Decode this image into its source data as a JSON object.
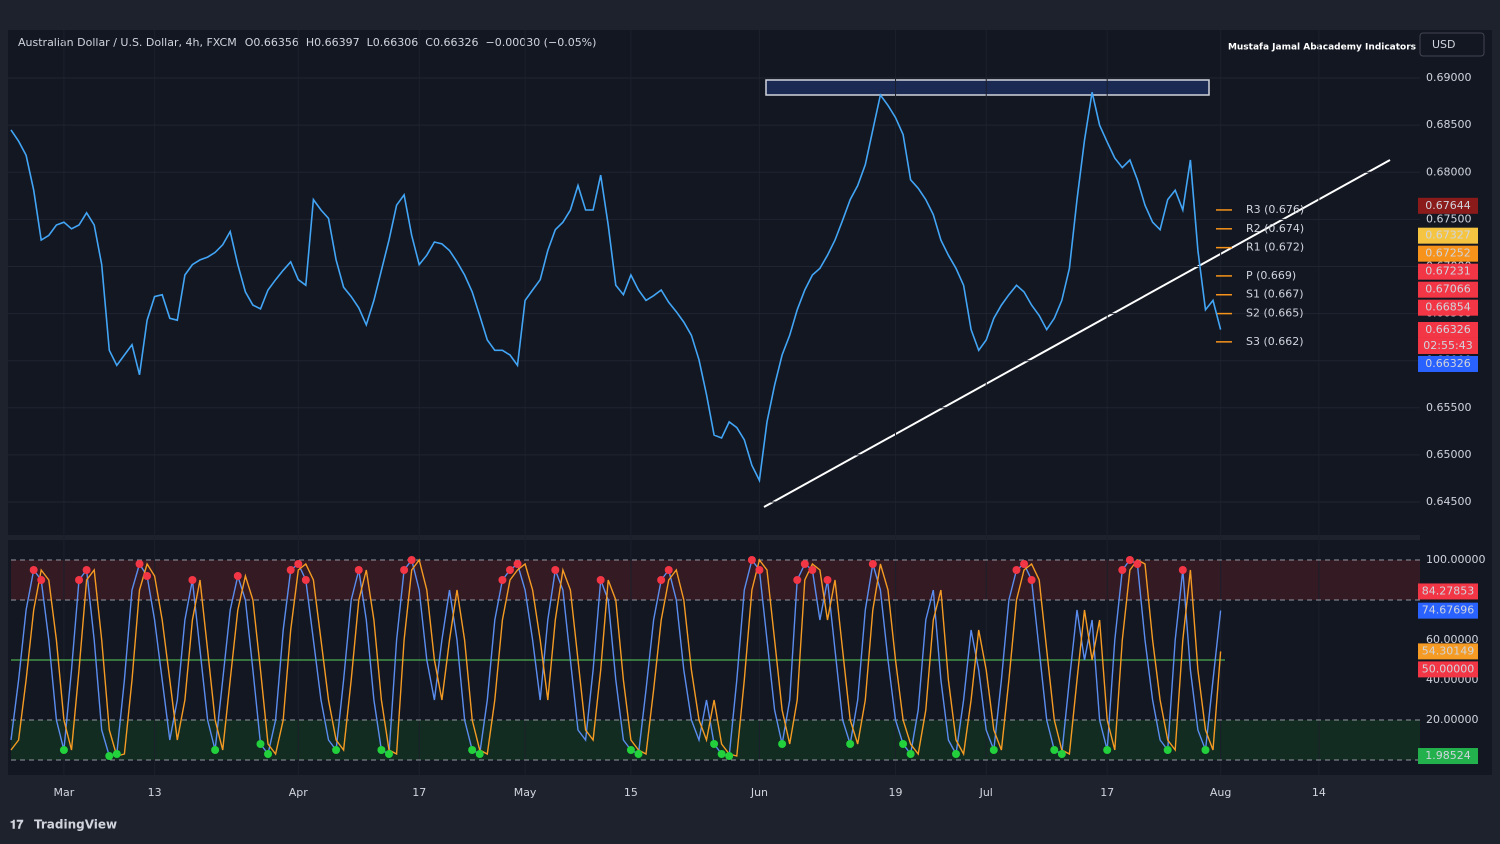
{
  "header": {
    "symbol": "Australian Dollar / U.S. Dollar, 4h, FXCM",
    "ohlc": [
      {
        "key": "O",
        "value": 0.66356
      },
      {
        "key": "H",
        "value": 0.66397
      },
      {
        "key": "L",
        "value": 0.66306
      },
      {
        "key": "C",
        "value": 0.66326
      }
    ],
    "change": "−0.00030 (−0.05%)",
    "indicator": "Mustafa Jamal Abacademy Indicators",
    "currency": "USD",
    "countdown": "02:55:43",
    "brand": "TradingView"
  },
  "chart_data": [
    {
      "type": "line",
      "color": "#42a5f5",
      "categories": [
        null,
        null,
        null,
        null,
        null,
        null,
        null,
        "Mar",
        null,
        null,
        null,
        null,
        null,
        null,
        null,
        null,
        null,
        null,
        null,
        "13",
        null,
        null,
        null,
        null,
        null,
        null,
        null,
        null,
        null,
        null,
        null,
        null,
        null,
        null,
        null,
        null,
        null,
        null,
        "Apr",
        null,
        null,
        null,
        null,
        null,
        null,
        null,
        null,
        null,
        null,
        null,
        null,
        null,
        null,
        null,
        "17",
        null,
        null,
        null,
        null,
        null,
        null,
        null,
        null,
        null,
        null,
        null,
        null,
        null,
        "May",
        null,
        null,
        null,
        null,
        null,
        null,
        null,
        null,
        null,
        null,
        null,
        null,
        null,
        "15",
        null,
        null,
        null,
        null,
        null,
        null,
        null,
        null,
        null,
        null,
        null,
        null,
        null,
        null,
        null,
        null,
        "Jun",
        null,
        null,
        null,
        null,
        null,
        null,
        null,
        null,
        null,
        null,
        null,
        null,
        null,
        null,
        null,
        null,
        null,
        "19",
        null,
        null,
        null,
        null,
        null,
        null,
        null,
        null,
        null,
        null,
        null,
        "Jul",
        null,
        null,
        null,
        null,
        null,
        null,
        null,
        null,
        null,
        null,
        null,
        null,
        null,
        null,
        null,
        "17",
        null,
        null,
        null,
        null,
        null,
        null,
        null,
        null,
        null,
        null,
        null,
        null,
        null,
        null,
        "Aug",
        null,
        null,
        null,
        null,
        null,
        null,
        null,
        null,
        null,
        null,
        null,
        null,
        "14",
        null,
        null,
        null,
        null,
        null,
        null,
        null,
        null,
        null,
        null,
        null,
        null
      ],
      "values": [
        0.6845,
        0.6833,
        0.6818,
        0.6781,
        0.6728,
        0.6733,
        0.6744,
        0.6747,
        0.674,
        0.6744,
        0.6757,
        0.6744,
        0.6702,
        0.6611,
        0.6595,
        0.6606,
        0.6617,
        0.6585,
        0.6643,
        0.6668,
        0.667,
        0.6645,
        0.6643,
        0.6691,
        0.6702,
        0.6707,
        0.671,
        0.6715,
        0.6723,
        0.6737,
        0.6702,
        0.6673,
        0.6659,
        0.6655,
        0.6675,
        0.6686,
        0.6696,
        0.6705,
        0.6686,
        0.668,
        0.6771,
        0.676,
        0.6751,
        0.6707,
        0.6678,
        0.6668,
        0.6656,
        0.6638,
        0.6664,
        0.6696,
        0.6728,
        0.6765,
        0.6776,
        0.6733,
        0.6702,
        0.6712,
        0.6726,
        0.6724,
        0.6717,
        0.6705,
        0.6691,
        0.6673,
        0.6648,
        0.6622,
        0.6611,
        0.6611,
        0.6606,
        0.6595,
        0.6664,
        0.6675,
        0.6686,
        0.6717,
        0.6739,
        0.6747,
        0.676,
        0.6786,
        0.676,
        0.676,
        0.6797,
        0.6744,
        0.668,
        0.667,
        0.6691,
        0.6675,
        0.6664,
        0.6669,
        0.6675,
        0.6662,
        0.6652,
        0.6641,
        0.6627,
        0.6601,
        0.6564,
        0.6521,
        0.6518,
        0.6535,
        0.6529,
        0.6516,
        0.6489,
        0.6473,
        0.6535,
        0.6574,
        0.6606,
        0.6627,
        0.6654,
        0.6675,
        0.6691,
        0.6698,
        0.6712,
        0.6728,
        0.6749,
        0.6771,
        0.6786,
        0.6808,
        0.6845,
        0.6882,
        0.6871,
        0.6858,
        0.684,
        0.6792,
        0.6783,
        0.6771,
        0.6755,
        0.6728,
        0.6712,
        0.6698,
        0.668,
        0.6633,
        0.6611,
        0.6622,
        0.6645,
        0.6659,
        0.667,
        0.668,
        0.6673,
        0.6659,
        0.6648,
        0.6633,
        0.6645,
        0.6664,
        0.6698,
        0.6771,
        0.6834,
        0.6885,
        0.685,
        0.6832,
        0.6815,
        0.6805,
        0.6813,
        0.6792,
        0.6765,
        0.6747,
        0.6739,
        0.6771,
        0.6781,
        0.676,
        0.6813,
        0.6717,
        0.6654,
        0.6664,
        0.6633,
        null,
        null,
        null,
        null,
        null,
        null,
        null,
        null,
        null,
        null,
        null,
        null,
        null,
        null,
        null,
        null,
        null,
        null,
        null,
        null,
        null,
        null,
        null,
        null,
        null
      ],
      "ylim": [
        0.6415,
        0.6951
      ],
      "yticks": [
        {
          "value": 0.69,
          "label": "0.69000"
        },
        {
          "value": 0.685,
          "label": "0.68500"
        },
        {
          "value": 0.68,
          "label": "0.68000"
        },
        {
          "value": 0.675,
          "label": "0.67500"
        },
        {
          "value": 0.67,
          "label": "0.67000"
        },
        {
          "value": 0.665,
          "label": "0.66500"
        },
        {
          "value": 0.66,
          "label": "0.66000"
        },
        {
          "value": 0.655,
          "label": "0.65500"
        },
        {
          "value": 0.65,
          "label": "0.65000"
        },
        {
          "value": 0.645,
          "label": "0.64500"
        }
      ],
      "grid": true,
      "pivot_color": "#f7931a",
      "pivots": [
        {
          "value": 0.676,
          "label": "R3 (0.676)"
        },
        {
          "value": 0.674,
          "label": "R2 (0.674)"
        },
        {
          "value": 0.672,
          "label": "R1 (0.672)"
        },
        {
          "value": 0.669,
          "label": "P (0.669)"
        },
        {
          "value": 0.667,
          "label": "S1 (0.667)"
        },
        {
          "value": 0.665,
          "label": "S2 (0.665)"
        },
        {
          "value": 0.662,
          "label": "S3 (0.662)"
        }
      ],
      "price_labels": [
        {
          "value": 0.67644,
          "label": "0.67644",
          "color": "#8b1a1a"
        },
        {
          "value": 0.67327,
          "label": "0.67327",
          "color": "#f5c542"
        },
        {
          "value": 0.67252,
          "label": "0.67252",
          "color": "#f7931a"
        },
        {
          "value": 0.67231,
          "label": "0.67231",
          "color": "#f23645"
        },
        {
          "value": 0.67066,
          "label": "0.67066",
          "color": "#f23645"
        },
        {
          "value": 0.66854,
          "label": "0.66854",
          "color": "#f23645"
        },
        {
          "value": 0.66326,
          "label": "0.66326",
          "color": "#f23645"
        },
        {
          "value": 0.66326,
          "label": "0.66326",
          "color": "#2962ff"
        }
      ]
    },
    {
      "type": "line",
      "series": [
        {
          "color": "#5b8def",
          "values": [
            10,
            40,
            75,
            95,
            90,
            60,
            20,
            5,
            45,
            90,
            95,
            60,
            15,
            2,
            3,
            40,
            85,
            98,
            92,
            70,
            40,
            10,
            30,
            70,
            90,
            55,
            20,
            5,
            40,
            75,
            92,
            80,
            45,
            8,
            3,
            20,
            65,
            95,
            98,
            90,
            60,
            30,
            10,
            5,
            40,
            80,
            95,
            70,
            30,
            5,
            3,
            60,
            95,
            100,
            85,
            50,
            30,
            60,
            85,
            60,
            20,
            5,
            3,
            30,
            70,
            90,
            95,
            98,
            85,
            60,
            30,
            70,
            95,
            85,
            50,
            15,
            10,
            45,
            90,
            80,
            40,
            10,
            5,
            3,
            35,
            70,
            90,
            95,
            80,
            45,
            20,
            10,
            30,
            8,
            3,
            2,
            40,
            85,
            100,
            95,
            60,
            25,
            8,
            30,
            90,
            98,
            95,
            70,
            90,
            55,
            20,
            8,
            30,
            75,
            98,
            85,
            50,
            20,
            8,
            3,
            25,
            70,
            85,
            40,
            10,
            3,
            30,
            65,
            45,
            15,
            5,
            40,
            80,
            95,
            98,
            90,
            55,
            20,
            5,
            3,
            40,
            75,
            50,
            70,
            20,
            5,
            60,
            95,
            100,
            98,
            60,
            30,
            10,
            5,
            60,
            95,
            45,
            15,
            5,
            40,
            74.67696
          ]
        },
        {
          "color": "#f59b23",
          "values": [
            5,
            10,
            40,
            75,
            95,
            90,
            60,
            20,
            5,
            45,
            90,
            95,
            60,
            15,
            2,
            3,
            40,
            85,
            98,
            92,
            70,
            40,
            10,
            30,
            70,
            90,
            55,
            20,
            5,
            40,
            75,
            92,
            80,
            45,
            8,
            3,
            20,
            65,
            95,
            98,
            90,
            60,
            30,
            10,
            5,
            40,
            80,
            95,
            70,
            30,
            5,
            3,
            60,
            95,
            100,
            85,
            50,
            30,
            60,
            85,
            60,
            20,
            5,
            3,
            30,
            70,
            90,
            95,
            98,
            85,
            60,
            30,
            70,
            95,
            85,
            50,
            15,
            10,
            45,
            90,
            80,
            40,
            10,
            5,
            3,
            35,
            70,
            90,
            95,
            80,
            45,
            20,
            10,
            30,
            8,
            3,
            2,
            40,
            85,
            100,
            95,
            60,
            25,
            8,
            30,
            90,
            98,
            95,
            70,
            90,
            55,
            20,
            8,
            30,
            75,
            98,
            85,
            50,
            20,
            8,
            3,
            25,
            70,
            85,
            40,
            10,
            3,
            30,
            65,
            45,
            15,
            5,
            40,
            80,
            95,
            98,
            90,
            55,
            20,
            5,
            3,
            40,
            75,
            50,
            70,
            20,
            5,
            60,
            95,
            100,
            98,
            60,
            30,
            10,
            5,
            60,
            95,
            45,
            15,
            5,
            54.30149
          ]
        }
      ],
      "ylim": [
        -7.5,
        110
      ],
      "yticks": [
        {
          "value": 100,
          "label": "100.00000"
        },
        {
          "value": 60,
          "label": "60.00000"
        },
        {
          "value": 40,
          "label": "40.00000"
        },
        {
          "value": 20,
          "label": "20.00000"
        }
      ],
      "levels": [
        100,
        80,
        20,
        0
      ],
      "midline": 50,
      "price_labels": [
        {
          "value": 84.27853,
          "label": "84.27853",
          "color": "#f23645"
        },
        {
          "value": 74.67696,
          "label": "74.67696",
          "color": "#2962ff"
        },
        {
          "value": 54.30149,
          "label": "54.30149",
          "color": "#f59b23"
        },
        {
          "value": 50,
          "label": "50.00000",
          "color": "#f23645"
        },
        {
          "value": 1.98524,
          "label": "1.98524",
          "color": "#22b14c"
        }
      ]
    }
  ]
}
